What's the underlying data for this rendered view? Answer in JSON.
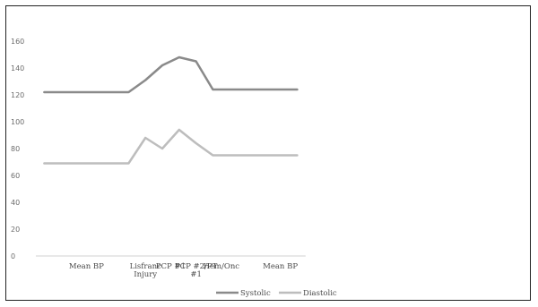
{
  "chart_data": {
    "type": "line",
    "title": "",
    "xlabel": "",
    "ylabel": "",
    "ylim": [
      0,
      160
    ],
    "yticks": [
      0,
      20,
      40,
      60,
      80,
      100,
      120,
      140,
      160
    ],
    "grid": false,
    "legend_position": "bottom",
    "x_points": 16,
    "category_labels": [
      {
        "text": "Mean BP",
        "at": 3.5
      },
      {
        "text": "Lisfranc Injury",
        "at": 7
      },
      {
        "text": "PCP #1",
        "at": 8.5
      },
      {
        "text": "PCP #2/PT #1",
        "at": 10
      },
      {
        "text": "Hem/Onc",
        "at": 11.5
      },
      {
        "text": "Mean BP",
        "at": 15
      }
    ],
    "series": [
      {
        "name": "Systolic",
        "color": "#8a8a8a",
        "values": [
          122,
          122,
          122,
          122,
          122,
          122,
          131,
          142,
          148,
          145,
          124,
          124,
          124,
          124,
          124,
          124
        ],
        "x": [
          1,
          2,
          3,
          4,
          5,
          6,
          7,
          8,
          9,
          10,
          11,
          12,
          13,
          14,
          15,
          16
        ]
      },
      {
        "name": "Diastolic",
        "color": "#bdbdbd",
        "values": [
          69,
          69,
          69,
          69,
          69,
          69,
          88,
          80,
          94,
          84,
          75,
          75,
          75,
          75,
          75,
          75
        ],
        "x": [
          1,
          2,
          3,
          4,
          5,
          6,
          7,
          8,
          9,
          10,
          11,
          12,
          13,
          14,
          15,
          16
        ]
      }
    ]
  }
}
